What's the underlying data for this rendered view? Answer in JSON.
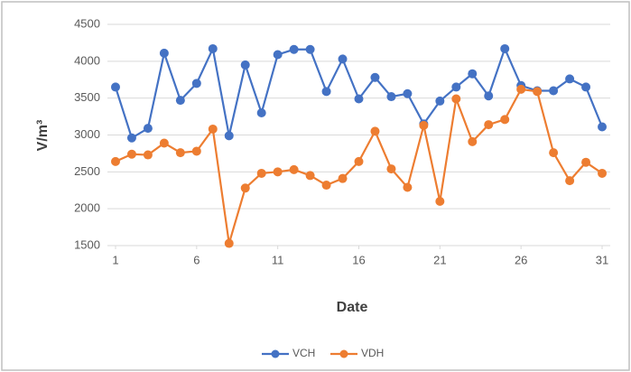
{
  "chart_data": {
    "type": "line",
    "x": [
      1,
      2,
      3,
      4,
      5,
      6,
      7,
      8,
      9,
      10,
      11,
      12,
      13,
      14,
      15,
      16,
      17,
      18,
      19,
      20,
      21,
      22,
      23,
      24,
      25,
      26,
      27,
      28,
      29,
      30,
      31
    ],
    "series": [
      {
        "name": "VCH",
        "color": "#4472c4",
        "values": [
          3650,
          2960,
          3090,
          4110,
          3470,
          3700,
          4170,
          2990,
          3950,
          3300,
          4090,
          4160,
          4160,
          3590,
          4030,
          3490,
          3780,
          3520,
          3560,
          3150,
          3460,
          3650,
          3830,
          3530,
          4170,
          3670,
          3600,
          3600,
          3760,
          3650,
          3110
        ]
      },
      {
        "name": "VDH",
        "color": "#ed7d31",
        "values": [
          2640,
          2740,
          2730,
          2890,
          2760,
          2780,
          3080,
          1530,
          2280,
          2480,
          2500,
          2530,
          2450,
          2320,
          2410,
          2640,
          3050,
          2540,
          2290,
          3130,
          2100,
          3490,
          2910,
          3140,
          3210,
          3620,
          3590,
          2760,
          2380,
          2630,
          2480
        ]
      }
    ],
    "xlabel": "Date",
    "ylabel": "V/m³",
    "xlim": [
      0.5,
      31.5
    ],
    "xticks": [
      1,
      6,
      11,
      16,
      21,
      26,
      31
    ],
    "ylim": [
      1500,
      4500
    ],
    "yticks": [
      1500,
      2000,
      2500,
      3000,
      3500,
      4000,
      4500
    ],
    "grid": true,
    "legend": "bottom"
  }
}
